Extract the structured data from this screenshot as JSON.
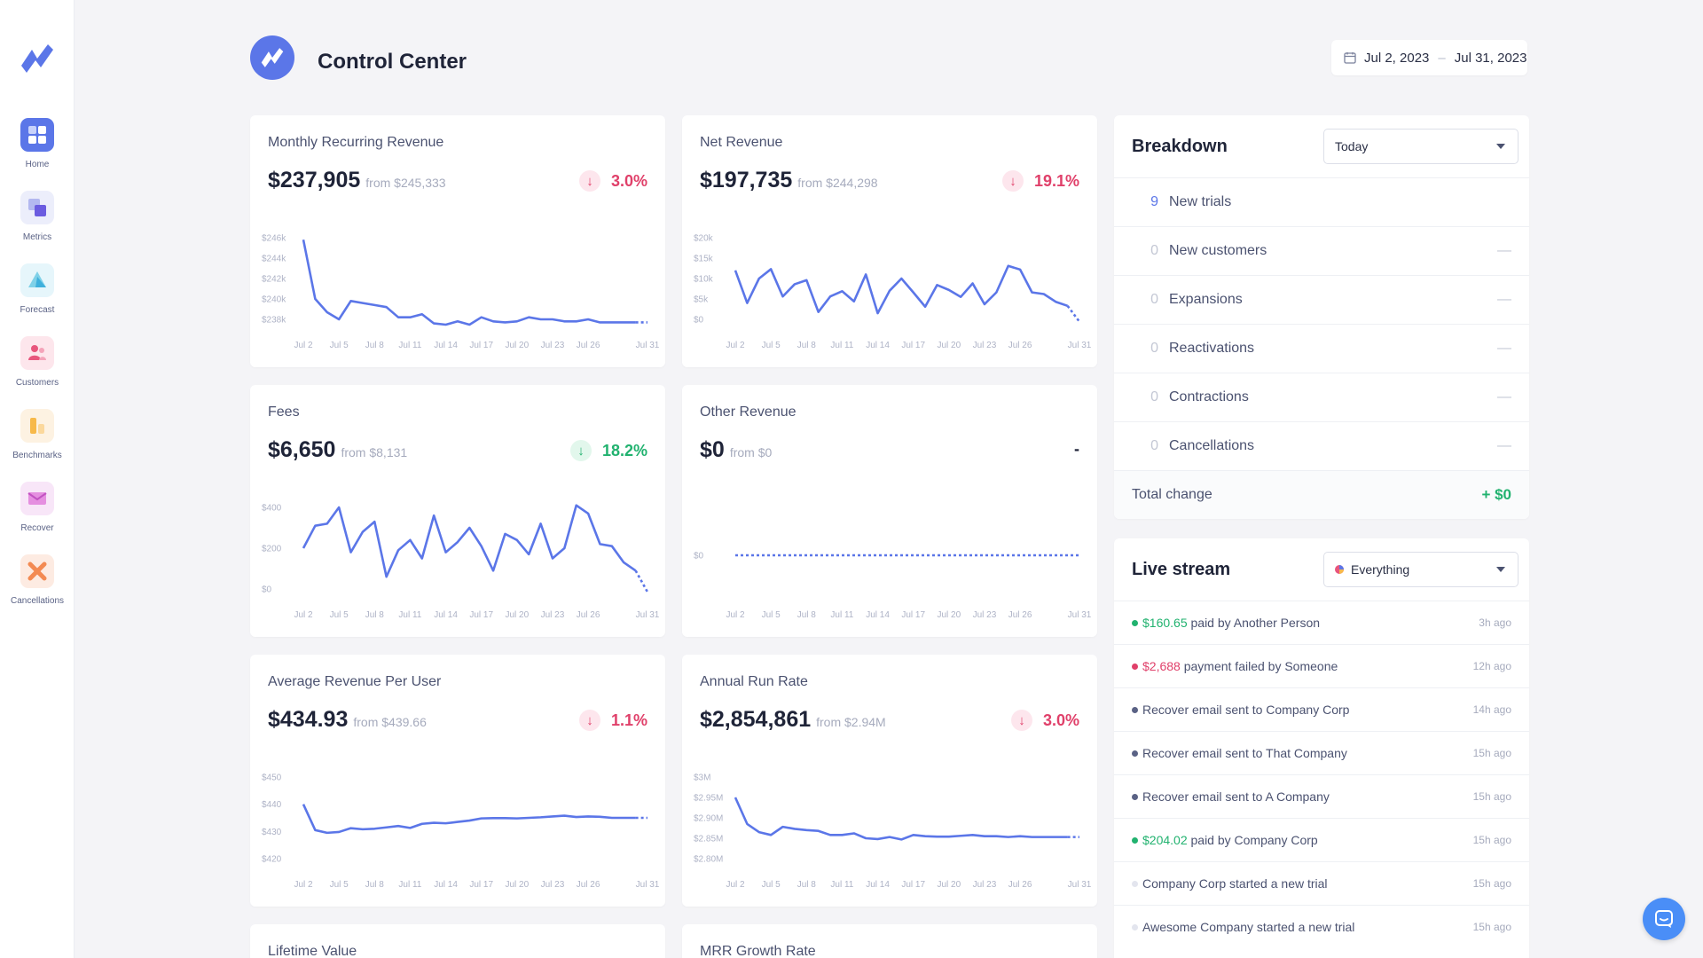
{
  "title": "Control Center",
  "date_range": {
    "start": "Jul 2, 2023",
    "sep": "–",
    "end": "Jul 31, 2023"
  },
  "sidebar": {
    "items": [
      {
        "label": "Home",
        "icon": "home-icon"
      },
      {
        "label": "Metrics",
        "icon": "metrics-icon"
      },
      {
        "label": "Forecast",
        "icon": "forecast-icon"
      },
      {
        "label": "Customers",
        "icon": "customers-icon"
      },
      {
        "label": "Benchmarks",
        "icon": "benchmarks-icon"
      },
      {
        "label": "Recover",
        "icon": "recover-icon"
      },
      {
        "label": "Cancellations",
        "icon": "cancellations-icon"
      }
    ]
  },
  "x_ticks": [
    "Jul 2",
    "Jul 5",
    "Jul 8",
    "Jul 11",
    "Jul 14",
    "Jul 17",
    "Jul 20",
    "Jul 23",
    "Jul 26",
    "Jul 31"
  ],
  "cards": [
    {
      "title": "Monthly Recurring Revenue",
      "value": "$237,905",
      "from": "from $245,333",
      "change": "3.0%",
      "dir": "down"
    },
    {
      "title": "Net Revenue",
      "value": "$197,735",
      "from": "from $244,298",
      "change": "19.1%",
      "dir": "down"
    },
    {
      "title": "Fees",
      "value": "$6,650",
      "from": "from $8,131",
      "change": "18.2%",
      "dir": "up"
    },
    {
      "title": "Other Revenue",
      "value": "$0",
      "from": "from $0",
      "change": "-",
      "dir": "none"
    },
    {
      "title": "Average Revenue Per User",
      "value": "$434.93",
      "from": "from $439.66",
      "change": "1.1%",
      "dir": "down"
    },
    {
      "title": "Annual Run Rate",
      "value": "$2,854,861",
      "from": "from $2.94M",
      "change": "3.0%",
      "dir": "down"
    },
    {
      "title": "Lifetime Value"
    },
    {
      "title": "MRR Growth Rate"
    }
  ],
  "chart_data": [
    {
      "type": "line",
      "title": "Monthly Recurring Revenue",
      "x": [
        "Jul 2",
        "Jul 3",
        "Jul 4",
        "Jul 5",
        "Jul 6",
        "Jul 7",
        "Jul 8",
        "Jul 9",
        "Jul 10",
        "Jul 11",
        "Jul 12",
        "Jul 13",
        "Jul 14",
        "Jul 15",
        "Jul 16",
        "Jul 17",
        "Jul 18",
        "Jul 19",
        "Jul 20",
        "Jul 21",
        "Jul 22",
        "Jul 23",
        "Jul 24",
        "Jul 25",
        "Jul 26",
        "Jul 27",
        "Jul 28",
        "Jul 29",
        "Jul 30",
        "Jul 31"
      ],
      "yticks": [
        "$246k",
        "$244k",
        "$242k",
        "$240k",
        "$238k"
      ],
      "ylim": [
        238000,
        246000
      ],
      "values": [
        245800,
        240000,
        238700,
        238000,
        239800,
        239600,
        239400,
        239200,
        238200,
        238200,
        238500,
        237600,
        237400,
        237800,
        237200,
        238200,
        237800,
        237700,
        237800,
        238200,
        238000,
        238000,
        237800,
        237800,
        238000,
        237700,
        237700,
        237700,
        237700,
        237700
      ]
    },
    {
      "type": "line",
      "title": "Net Revenue",
      "x": [
        "Jul 2",
        "Jul 3",
        "Jul 4",
        "Jul 5",
        "Jul 6",
        "Jul 7",
        "Jul 8",
        "Jul 9",
        "Jul 10",
        "Jul 11",
        "Jul 12",
        "Jul 13",
        "Jul 14",
        "Jul 15",
        "Jul 16",
        "Jul 17",
        "Jul 18",
        "Jul 19",
        "Jul 20",
        "Jul 21",
        "Jul 22",
        "Jul 23",
        "Jul 24",
        "Jul 25",
        "Jul 26",
        "Jul 27",
        "Jul 28",
        "Jul 29",
        "Jul 30",
        "Jul 31"
      ],
      "yticks": [
        "$20k",
        "$15k",
        "$10k",
        "$5k",
        "$0"
      ],
      "ylim": [
        0,
        20000
      ],
      "values": [
        12000,
        4000,
        10000,
        12300,
        5600,
        8600,
        9600,
        1800,
        5600,
        6900,
        4400,
        11000,
        1500,
        7000,
        10000,
        6600,
        3100,
        8400,
        7200,
        5500,
        8800,
        3700,
        6600,
        13100,
        12200,
        6600,
        6200,
        4300,
        3300,
        700
      ]
    },
    {
      "type": "line",
      "title": "Fees",
      "x": [
        "Jul 2",
        "Jul 3",
        "Jul 4",
        "Jul 5",
        "Jul 6",
        "Jul 7",
        "Jul 8",
        "Jul 9",
        "Jul 10",
        "Jul 11",
        "Jul 12",
        "Jul 13",
        "Jul 14",
        "Jul 15",
        "Jul 16",
        "Jul 17",
        "Jul 18",
        "Jul 19",
        "Jul 20",
        "Jul 21",
        "Jul 22",
        "Jul 23",
        "Jul 24",
        "Jul 25",
        "Jul 26",
        "Jul 27",
        "Jul 28",
        "Jul 29",
        "Jul 30",
        "Jul 31"
      ],
      "yticks": [
        "$400",
        "$200",
        "$0"
      ],
      "ylim": [
        0,
        400
      ],
      "values": [
        200,
        310,
        320,
        400,
        180,
        280,
        330,
        60,
        190,
        240,
        150,
        360,
        180,
        230,
        300,
        210,
        90,
        270,
        240,
        170,
        320,
        150,
        200,
        410,
        370,
        220,
        210,
        130,
        90,
        20
      ]
    },
    {
      "type": "line",
      "title": "Other Revenue",
      "x": [
        "Jul 2",
        "Jul 31"
      ],
      "yticks": [
        "$0"
      ],
      "ylim": [
        0,
        1
      ],
      "values": [
        0,
        0
      ]
    },
    {
      "type": "line",
      "title": "Average Revenue Per User",
      "x": [
        "Jul 2",
        "Jul 3",
        "Jul 4",
        "Jul 5",
        "Jul 6",
        "Jul 7",
        "Jul 8",
        "Jul 9",
        "Jul 10",
        "Jul 11",
        "Jul 12",
        "Jul 13",
        "Jul 14",
        "Jul 15",
        "Jul 16",
        "Jul 17",
        "Jul 18",
        "Jul 19",
        "Jul 20",
        "Jul 21",
        "Jul 22",
        "Jul 23",
        "Jul 24",
        "Jul 25",
        "Jul 26",
        "Jul 27",
        "Jul 28",
        "Jul 29",
        "Jul 30",
        "Jul 31"
      ],
      "yticks": [
        "$450",
        "$440",
        "$430",
        "$420"
      ],
      "ylim": [
        420,
        450
      ],
      "values": [
        440,
        430.5,
        429.5,
        429.8,
        431.2,
        430.8,
        431,
        431.5,
        432,
        431.3,
        432.8,
        433.2,
        433,
        433.5,
        434,
        434.8,
        434.9,
        434.9,
        434.8,
        435,
        435.2,
        435.5,
        435.8,
        435.3,
        435.5,
        435.4,
        435,
        435,
        435,
        435
      ]
    },
    {
      "type": "line",
      "title": "Annual Run Rate",
      "x": [
        "Jul 2",
        "Jul 3",
        "Jul 4",
        "Jul 5",
        "Jul 6",
        "Jul 7",
        "Jul 8",
        "Jul 9",
        "Jul 10",
        "Jul 11",
        "Jul 12",
        "Jul 13",
        "Jul 14",
        "Jul 15",
        "Jul 16",
        "Jul 17",
        "Jul 18",
        "Jul 19",
        "Jul 20",
        "Jul 21",
        "Jul 22",
        "Jul 23",
        "Jul 24",
        "Jul 25",
        "Jul 26",
        "Jul 27",
        "Jul 28",
        "Jul 29",
        "Jul 30",
        "Jul 31"
      ],
      "yticks": [
        "$3M",
        "$2.95M",
        "$2.90M",
        "$2.85M",
        "$2.80M"
      ],
      "ylim": [
        2800000,
        3000000
      ],
      "values": [
        2950000,
        2885000,
        2865000,
        2858000,
        2878000,
        2873000,
        2870000,
        2868000,
        2858000,
        2858000,
        2862000,
        2850000,
        2848000,
        2853000,
        2847000,
        2858000,
        2855000,
        2854000,
        2854000,
        2856000,
        2858000,
        2855000,
        2855000,
        2853000,
        2855000,
        2853000,
        2853000,
        2853000,
        2853000,
        2853000
      ]
    }
  ],
  "breakdown": {
    "title": "Breakdown",
    "select": "Today",
    "rows": [
      {
        "n": "9",
        "label": "New trials",
        "dash": ""
      },
      {
        "n": "0",
        "label": "New customers",
        "dash": "—"
      },
      {
        "n": "0",
        "label": "Expansions",
        "dash": "—"
      },
      {
        "n": "0",
        "label": "Reactivations",
        "dash": "—"
      },
      {
        "n": "0",
        "label": "Contractions",
        "dash": "—"
      },
      {
        "n": "0",
        "label": "Cancellations",
        "dash": "—"
      }
    ],
    "total_label": "Total change",
    "total_value": "+ $0"
  },
  "live": {
    "title": "Live stream",
    "select": "Everything",
    "items": [
      {
        "amount": "$160.65",
        "text": " paid by Another Person",
        "ago": "3h ago",
        "color": "#21b26f"
      },
      {
        "amount": "$2,688",
        "text": " payment failed by Someone",
        "ago": "12h ago",
        "color": "#e0406a"
      },
      {
        "amount": "",
        "text": "Recover email sent to Company Corp",
        "ago": "14h ago",
        "color": "#5a6285"
      },
      {
        "amount": "",
        "text": "Recover email sent to That Company",
        "ago": "15h ago",
        "color": "#5a6285"
      },
      {
        "amount": "",
        "text": "Recover email sent to A Company",
        "ago": "15h ago",
        "color": "#5a6285"
      },
      {
        "amount": "$204.02",
        "text": " paid by Company Corp",
        "ago": "15h ago",
        "color": "#21b26f"
      },
      {
        "amount": "",
        "text": "Company Corp started a new trial",
        "ago": "15h ago",
        "color": "#e3e5ee"
      },
      {
        "amount": "",
        "text": "Awesome Company started a new trial",
        "ago": "15h ago",
        "color": "#e3e5ee"
      }
    ]
  },
  "colors": {
    "accent": "#5b76e8",
    "down": "#e0406a",
    "up": "#21b26f"
  }
}
